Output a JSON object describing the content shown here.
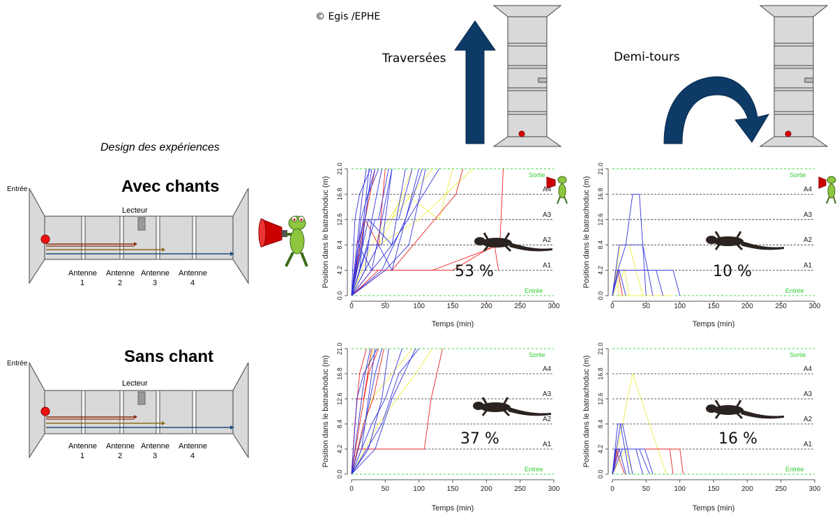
{
  "credit": "© Egis /EPHE",
  "headers": {
    "crossings": "Traversées",
    "uturns": "Demi-tours"
  },
  "design": {
    "label": "Design des expériences",
    "entry_label": "Entrée",
    "reader_label": "Lecteur",
    "antenna_word": "Antenne",
    "antenna_numbers": [
      "1",
      "2",
      "3",
      "4"
    ],
    "conditions": [
      {
        "title": "Avec chants"
      },
      {
        "title": "Sans chant"
      }
    ]
  },
  "plot_labels": {
    "ylabel": "Position dans le batrachoduc (m)",
    "xlabel": "Temps (min)",
    "exit_label": "Sortie",
    "entry_label": "Entrée",
    "antenna_labels": [
      "A1",
      "A2",
      "A3",
      "A4"
    ]
  },
  "colors": {
    "blue": "#3333dd",
    "red": "#ee2222",
    "yellow": "#eeee44",
    "green": "#33dd33",
    "arrow": "#0d3a66"
  },
  "chart_data": [
    {
      "type": "line",
      "panel": "avec-chants-traversees",
      "xlim": [
        0,
        300
      ],
      "ylim": [
        0,
        21
      ],
      "x_ticks": [
        "0",
        "50",
        "100",
        "150",
        "200",
        "250",
        "300"
      ],
      "y_ticks": [
        "0.0",
        "4.2",
        "8.4",
        "12.6",
        "16.8",
        "21.0"
      ],
      "reference_lines": [
        4.2,
        8.4,
        12.6,
        16.8
      ],
      "percentage": "53 %",
      "series": [
        {
          "color": "blue",
          "x": [
            0,
            8,
            16,
            22
          ],
          "y": [
            0,
            8.4,
            16.8,
            21
          ]
        },
        {
          "color": "blue",
          "x": [
            0,
            10,
            18,
            26
          ],
          "y": [
            0,
            8.4,
            12.6,
            21
          ]
        },
        {
          "color": "blue",
          "x": [
            0,
            12,
            20,
            30
          ],
          "y": [
            0,
            4.2,
            12.6,
            21
          ]
        },
        {
          "color": "blue",
          "x": [
            0,
            6,
            14,
            35
          ],
          "y": [
            0,
            4.2,
            12.6,
            21
          ]
        },
        {
          "color": "blue",
          "x": [
            0,
            15,
            25,
            40
          ],
          "y": [
            0,
            8.4,
            16.8,
            21
          ]
        },
        {
          "color": "blue",
          "x": [
            0,
            20,
            30,
            45
          ],
          "y": [
            0,
            4.2,
            12.6,
            21
          ]
        },
        {
          "color": "blue",
          "x": [
            0,
            18,
            40,
            55
          ],
          "y": [
            0,
            12.6,
            12.6,
            21
          ]
        },
        {
          "color": "blue",
          "x": [
            0,
            25,
            45,
            60
          ],
          "y": [
            0,
            8.4,
            8.4,
            21
          ]
        },
        {
          "color": "blue",
          "x": [
            0,
            30,
            60,
            80
          ],
          "y": [
            0,
            4.2,
            8.4,
            21
          ]
        },
        {
          "color": "blue",
          "x": [
            0,
            35,
            70,
            90
          ],
          "y": [
            0,
            12.6,
            12.6,
            21
          ]
        },
        {
          "color": "blue",
          "x": [
            0,
            40,
            60,
            100
          ],
          "y": [
            0,
            8.4,
            4.2,
            21
          ]
        },
        {
          "color": "blue",
          "x": [
            0,
            50,
            85,
            110
          ],
          "y": [
            0,
            4.2,
            8.4,
            21
          ]
        },
        {
          "color": "blue",
          "x": [
            0,
            25,
            60,
            130
          ],
          "y": [
            0,
            12.6,
            8.4,
            21
          ]
        },
        {
          "color": "blue",
          "x": [
            0,
            10,
            30,
            45,
            60
          ],
          "y": [
            0,
            8.4,
            4.2,
            12.6,
            21
          ]
        },
        {
          "color": "blue",
          "x": [
            0,
            5,
            12,
            28
          ],
          "y": [
            0,
            12.6,
            16.8,
            21
          ]
        },
        {
          "color": "blue",
          "x": [
            0,
            45,
            80,
            105
          ],
          "y": [
            0,
            4.2,
            12.6,
            21
          ]
        },
        {
          "color": "red",
          "x": [
            0,
            8,
            20,
            35
          ],
          "y": [
            0,
            8.4,
            12.6,
            21
          ]
        },
        {
          "color": "red",
          "x": [
            0,
            20,
            40,
            50
          ],
          "y": [
            0,
            12.6,
            8.4,
            21
          ]
        },
        {
          "color": "red",
          "x": [
            0,
            30,
            60,
            155,
            165
          ],
          "y": [
            0,
            4.2,
            4.2,
            16.8,
            21
          ]
        },
        {
          "color": "red",
          "x": [
            0,
            40,
            120,
            220,
            225
          ],
          "y": [
            0,
            4.2,
            4.2,
            8.4,
            21
          ]
        },
        {
          "color": "red",
          "x": [
            0,
            50,
            150,
            212,
            218
          ],
          "y": [
            0,
            4.2,
            4.2,
            8.4,
            4.2
          ]
        },
        {
          "color": "yellow",
          "x": [
            0,
            25,
            60,
            90
          ],
          "y": [
            0,
            12.6,
            12.6,
            21
          ]
        },
        {
          "color": "yellow",
          "x": [
            0,
            30,
            80,
            130,
            150
          ],
          "y": [
            0,
            8.4,
            16.8,
            12.6,
            21
          ]
        },
        {
          "color": "yellow",
          "x": [
            0,
            40,
            100,
            180
          ],
          "y": [
            0,
            8.4,
            12.6,
            21
          ]
        },
        {
          "color": "yellow",
          "x": [
            0,
            60,
            90,
            120
          ],
          "y": [
            0,
            12.6,
            16.8,
            21
          ]
        }
      ]
    },
    {
      "type": "line",
      "panel": "avec-chants-demi-tours",
      "xlim": [
        0,
        300
      ],
      "ylim": [
        0,
        21
      ],
      "x_ticks": [
        "0",
        "50",
        "100",
        "150",
        "200",
        "250",
        "300"
      ],
      "y_ticks": [
        "0.0",
        "4.2",
        "8.4",
        "12.6",
        "16.8",
        "21.0"
      ],
      "reference_lines": [
        4.2,
        8.4,
        12.6,
        16.8
      ],
      "percentage": "10 %",
      "series": [
        {
          "color": "blue",
          "x": [
            0,
            8,
            20,
            30,
            40,
            50
          ],
          "y": [
            0,
            4.2,
            8.4,
            16.8,
            16.8,
            0
          ]
        },
        {
          "color": "blue",
          "x": [
            0,
            5,
            10,
            20
          ],
          "y": [
            0,
            4.2,
            4.2,
            0
          ]
        },
        {
          "color": "blue",
          "x": [
            0,
            8,
            90,
            100
          ],
          "y": [
            0,
            4.2,
            4.2,
            0
          ]
        },
        {
          "color": "blue",
          "x": [
            0,
            10,
            45,
            60
          ],
          "y": [
            0,
            8.4,
            8.4,
            0
          ]
        },
        {
          "color": "blue",
          "x": [
            0,
            10,
            65,
            75
          ],
          "y": [
            0,
            4.2,
            4.2,
            0
          ]
        },
        {
          "color": "yellow",
          "x": [
            0,
            12,
            25,
            35,
            45
          ],
          "y": [
            0,
            8.4,
            8.4,
            4.2,
            0
          ]
        },
        {
          "color": "yellow",
          "x": [
            0,
            18,
            25
          ],
          "y": [
            0,
            4.2,
            0
          ]
        },
        {
          "color": "yellow",
          "x": [
            0,
            5,
            10,
            90
          ],
          "y": [
            0,
            4.2,
            0,
            0
          ]
        },
        {
          "color": "red",
          "x": [
            0,
            8,
            15
          ],
          "y": [
            0,
            4.2,
            0
          ]
        }
      ]
    },
    {
      "type": "line",
      "panel": "sans-chant-traversees",
      "xlim": [
        0,
        300
      ],
      "ylim": [
        0,
        21
      ],
      "x_ticks": [
        "0",
        "50",
        "100",
        "150",
        "200",
        "250",
        "300"
      ],
      "y_ticks": [
        "0.0",
        "4.2",
        "8.4",
        "12.6",
        "16.8",
        "21.0"
      ],
      "reference_lines": [
        4.2,
        8.4,
        12.6,
        16.8
      ],
      "percentage": "37 %",
      "series": [
        {
          "color": "blue",
          "x": [
            0,
            10,
            20,
            28
          ],
          "y": [
            0,
            8.4,
            16.8,
            21
          ]
        },
        {
          "color": "blue",
          "x": [
            0,
            15,
            25,
            35
          ],
          "y": [
            0,
            4.2,
            12.6,
            21
          ]
        },
        {
          "color": "blue",
          "x": [
            0,
            20,
            35,
            45
          ],
          "y": [
            0,
            8.4,
            16.8,
            21
          ]
        },
        {
          "color": "blue",
          "x": [
            0,
            25,
            45,
            55
          ],
          "y": [
            0,
            4.2,
            12.6,
            21
          ]
        },
        {
          "color": "blue",
          "x": [
            0,
            30,
            50,
            75
          ],
          "y": [
            0,
            8.4,
            12.6,
            21
          ]
        },
        {
          "color": "blue",
          "x": [
            0,
            35,
            60,
            95
          ],
          "y": [
            0,
            4.2,
            12.6,
            21
          ]
        },
        {
          "color": "blue",
          "x": [
            0,
            45,
            70,
            100
          ],
          "y": [
            0,
            8.4,
            16.8,
            21
          ]
        },
        {
          "color": "blue",
          "x": [
            0,
            8,
            18,
            38
          ],
          "y": [
            0,
            12.6,
            16.8,
            21
          ]
        },
        {
          "color": "red",
          "x": [
            0,
            5,
            12,
            22
          ],
          "y": [
            0,
            8.4,
            16.8,
            21
          ]
        },
        {
          "color": "red",
          "x": [
            0,
            8,
            18,
            30
          ],
          "y": [
            0,
            12.6,
            12.6,
            21
          ]
        },
        {
          "color": "red",
          "x": [
            0,
            12,
            25,
            40
          ],
          "y": [
            0,
            8.4,
            16.8,
            21
          ]
        },
        {
          "color": "red",
          "x": [
            0,
            10,
            108,
            118,
            135
          ],
          "y": [
            0,
            4.2,
            4.2,
            12.6,
            21
          ]
        },
        {
          "color": "red",
          "x": [
            0,
            18,
            32,
            48
          ],
          "y": [
            0,
            8.4,
            12.6,
            21
          ]
        },
        {
          "color": "yellow",
          "x": [
            0,
            10,
            20,
            33
          ],
          "y": [
            0,
            8.4,
            16.8,
            21
          ]
        },
        {
          "color": "yellow",
          "x": [
            0,
            40,
            95,
            120
          ],
          "y": [
            0,
            8.4,
            16.8,
            21
          ]
        },
        {
          "color": "yellow",
          "x": [
            0,
            30,
            60,
            90
          ],
          "y": [
            0,
            12.6,
            16.8,
            21
          ]
        }
      ]
    },
    {
      "type": "line",
      "panel": "sans-chant-demi-tours",
      "xlim": [
        0,
        300
      ],
      "ylim": [
        0,
        21
      ],
      "x_ticks": [
        "0",
        "50",
        "100",
        "150",
        "200",
        "250",
        "300"
      ],
      "y_ticks": [
        "0.0",
        "4.2",
        "8.4",
        "12.6",
        "16.8",
        "21.0"
      ],
      "reference_lines": [
        4.2,
        8.4,
        12.6,
        16.8
      ],
      "percentage": "16 %",
      "series": [
        {
          "color": "blue",
          "x": [
            0,
            8,
            15,
            30
          ],
          "y": [
            0,
            8.4,
            8.4,
            0
          ]
        },
        {
          "color": "blue",
          "x": [
            0,
            5,
            40,
            55
          ],
          "y": [
            0,
            4.2,
            4.2,
            0
          ]
        },
        {
          "color": "blue",
          "x": [
            0,
            10,
            20
          ],
          "y": [
            0,
            4.2,
            0
          ]
        },
        {
          "color": "blue",
          "x": [
            0,
            12,
            25
          ],
          "y": [
            0,
            8.4,
            0
          ]
        },
        {
          "color": "blue",
          "x": [
            0,
            6,
            48,
            60
          ],
          "y": [
            0,
            4.2,
            4.2,
            0
          ]
        },
        {
          "color": "blue",
          "x": [
            0,
            15,
            35,
            45
          ],
          "y": [
            0,
            4.2,
            4.2,
            0
          ]
        },
        {
          "color": "yellow",
          "x": [
            0,
            15,
            30,
            55,
            80
          ],
          "y": [
            0,
            8.4,
            16.8,
            8.4,
            0
          ]
        },
        {
          "color": "yellow",
          "x": [
            0,
            20,
            30
          ],
          "y": [
            0,
            4.2,
            0
          ]
        },
        {
          "color": "red",
          "x": [
            0,
            8,
            85,
            90
          ],
          "y": [
            0,
            4.2,
            4.2,
            0
          ]
        },
        {
          "color": "red",
          "x": [
            0,
            10,
            100,
            105
          ],
          "y": [
            0,
            4.2,
            4.2,
            0
          ]
        },
        {
          "color": "red",
          "x": [
            0,
            5,
            18
          ],
          "y": [
            0,
            4.2,
            0
          ]
        }
      ]
    }
  ]
}
